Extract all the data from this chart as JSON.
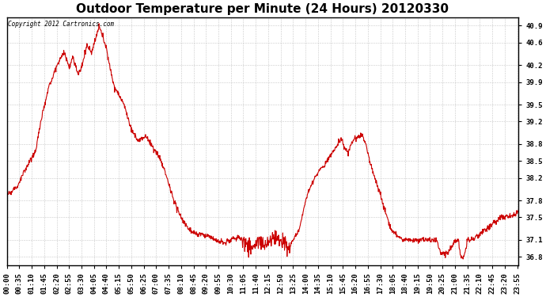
{
  "title": "Outdoor Temperature per Minute (24 Hours) 20120330",
  "copyright_text": "Copyright 2012 Cartronics.com",
  "line_color": "#cc0000",
  "background_color": "#ffffff",
  "plot_bg_color": "#ffffff",
  "grid_color": "#bbbbbb",
  "yticks": [
    36.8,
    37.1,
    37.5,
    37.8,
    38.2,
    38.5,
    38.8,
    39.2,
    39.5,
    39.9,
    40.2,
    40.6,
    40.9
  ],
  "ylim": [
    36.65,
    41.05
  ],
  "total_minutes": 1440,
  "xtick_interval_minutes": 35,
  "title_fontsize": 11,
  "tick_fontsize": 6.5
}
